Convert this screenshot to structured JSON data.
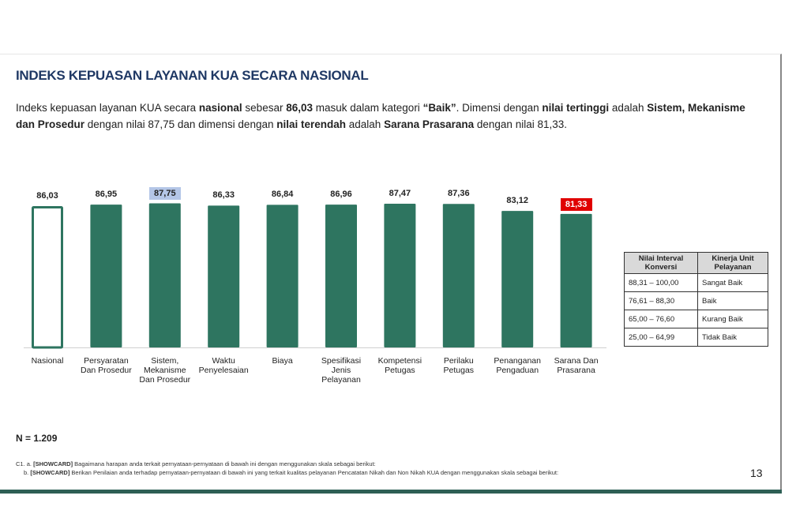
{
  "title": "INDEKS KEPUASAN LAYANAN KUA SECARA NASIONAL",
  "description": {
    "p1": "Indeks kepuasan layanan KUA secara ",
    "b1": "nasional",
    "p2": " sebesar ",
    "b2": "86,03",
    "p3": " masuk dalam kategori ",
    "b3": "“Baik”",
    "p4": ". Dimensi dengan ",
    "b4": "nilai tertinggi",
    "p5": " adalah ",
    "b5": "Sistem, Mekanisme dan Prosedur",
    "p6": " dengan nilai 87,75 dan dimensi dengan ",
    "b6": "nilai terendah",
    "p7": " adalah ",
    "b7": "Sarana Prasarana",
    "p8": " dengan nilai 81,33."
  },
  "chart_data": {
    "type": "bar",
    "title": "",
    "xlabel": "",
    "ylabel": "",
    "ylim": [
      0,
      100
    ],
    "grid": false,
    "categories": [
      "Nasional",
      "Persyaratan Dan Prosedur",
      "Sistem, Mekanisme Dan Prosedur",
      "Waktu Penyelesaian",
      "Biaya",
      "Spesifikasi Jenis Pelayanan",
      "Kompetensi Petugas",
      "Perilaku Petugas",
      "Penanganan Pengaduan",
      "Sarana Dan Prasarana"
    ],
    "category_lines": [
      [
        "Nasional"
      ],
      [
        "Persyaratan",
        "Dan Prosedur"
      ],
      [
        "Sistem,",
        "Mekanisme",
        "Dan Prosedur"
      ],
      [
        "Waktu",
        "Penyelesaian"
      ],
      [
        "Biaya"
      ],
      [
        "Spesifikasi",
        "Jenis",
        "Pelayanan"
      ],
      [
        "Kompetensi",
        "Petugas"
      ],
      [
        "Perilaku",
        "Petugas"
      ],
      [
        "Penanganan",
        "Pengaduan"
      ],
      [
        "Sarana Dan",
        "Prasarana"
      ]
    ],
    "values": [
      86.03,
      86.95,
      87.75,
      86.33,
      86.84,
      86.96,
      87.47,
      87.36,
      83.12,
      81.33
    ],
    "labels": [
      "86,03",
      "86,95",
      "87,75",
      "86,33",
      "86,84",
      "86,96",
      "87,47",
      "87,36",
      "83,12",
      "81,33"
    ],
    "highlight": {
      "highest_index": 2,
      "lowest_index": 9,
      "outlined_index": 0
    },
    "colors": {
      "bar": "#2e7560",
      "highest_label_bg": "#b4c6e7",
      "lowest_label_bg": "#e00000"
    }
  },
  "legend_table": {
    "headers": [
      "Nilai Interval Konversi",
      "Kinerja Unit Pelayanan"
    ],
    "rows": [
      [
        "88,31 – 100,00",
        "Sangat Baik"
      ],
      [
        "76,61 – 88,30",
        "Baik"
      ],
      [
        "65,00 – 76,60",
        "Kurang Baik"
      ],
      [
        "25,00 – 64,99",
        "Tidak Baik"
      ]
    ]
  },
  "sample_size": "N = 1.209",
  "footnote": {
    "a_prefix": "C1. a. ",
    "a_tag": "[SHOWCARD]",
    "a_text": " Bagaimana harapan anda terkait pernyataan-pernyataan di bawah ini dengan menggunakan skala sebagai berikut:",
    "b_prefix": "b. ",
    "b_tag": "[SHOWCARD]",
    "b_text": " Berikan Penilaian anda terhadap pernyataan-pernyataan di bawah ini yang terkait kualitas pelayanan Pencatatan Nikah dan Non Nikah KUA dengan menggunakan skala sebagai berikut:"
  },
  "page_number": "13"
}
